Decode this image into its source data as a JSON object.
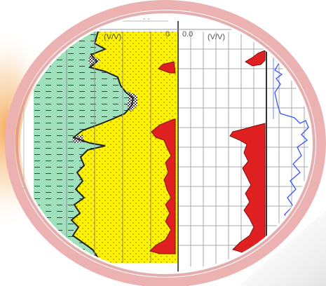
{
  "log_panel": {
    "left_track_header": "(V/V)",
    "left_track_scale_end": "0",
    "right_track_scale_start": "0.0",
    "right_track_header": "(V/V)",
    "top_fragment": "- -"
  },
  "colors": {
    "lens_rim": "#e3a5a5",
    "shale_fill": "#9fe0bd",
    "sand_fill": "#fff300",
    "curve_red": "#e02020",
    "curve_blue": "#3355ff",
    "gamma_curve": "#333333",
    "grid_line": "#9a9a9a",
    "orange_glow": "#f4b86a"
  }
}
